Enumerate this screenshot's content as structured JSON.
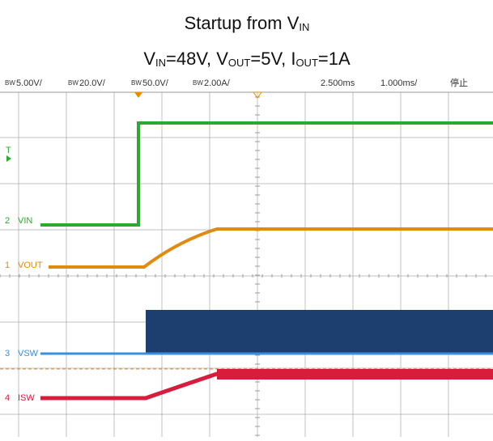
{
  "title": {
    "text": "Startup from V",
    "sub": "IN"
  },
  "subtitle": [
    "V",
    "IN",
    "=48V, V",
    "OUT",
    "=5V, I",
    "OUT",
    "=1A"
  ],
  "header": {
    "bw": "BW",
    "scales": [
      "5.00V/",
      "20.0V/",
      "50.0V/",
      "2.00A/"
    ],
    "delay": "2.500ms",
    "timebase": "1.000ms/",
    "status": "停止"
  },
  "trigger": "T",
  "channels": [
    {
      "number": "2",
      "label": "VIN"
    },
    {
      "number": "1",
      "label": "VOUT"
    },
    {
      "number": "3",
      "label": "VSW"
    },
    {
      "number": "4",
      "label": "ISW"
    }
  ]
}
